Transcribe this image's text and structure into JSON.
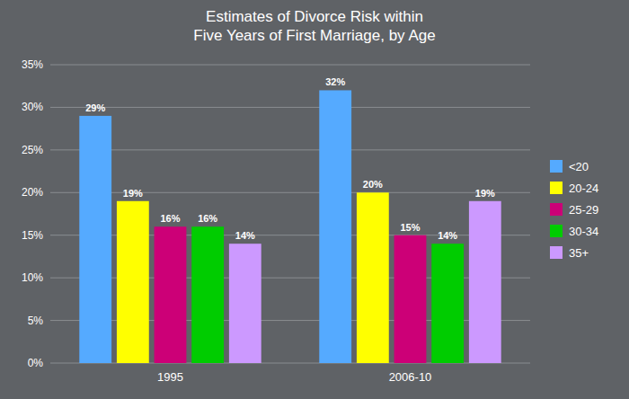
{
  "chart_data": {
    "type": "bar",
    "title": "Estimates of Divorce Risk within\nFive Years of First Marriage, by Age",
    "categories": [
      "1995",
      "2006-10"
    ],
    "series": [
      {
        "name": "<20",
        "color": "#55aaff",
        "values": [
          29,
          32
        ],
        "value_labels": [
          "29%",
          "32%"
        ]
      },
      {
        "name": "20-24",
        "color": "#ffff00",
        "values": [
          19,
          20
        ],
        "value_labels": [
          "19%",
          "20%"
        ]
      },
      {
        "name": "25-29",
        "color": "#cc0077",
        "values": [
          16,
          15
        ],
        "value_labels": [
          "16%",
          "15%"
        ]
      },
      {
        "name": "30-34",
        "color": "#00cc00",
        "values": [
          16,
          14
        ],
        "value_labels": [
          "16%",
          "14%"
        ]
      },
      {
        "name": "35+",
        "color": "#cc99ff",
        "values": [
          14,
          19
        ],
        "value_labels": [
          "14%",
          "19%"
        ]
      }
    ],
    "ylim": [
      0,
      35
    ],
    "yticks": [
      {
        "value": 0,
        "label": "0%"
      },
      {
        "value": 5,
        "label": "5%"
      },
      {
        "value": 10,
        "label": "10%"
      },
      {
        "value": 15,
        "label": "15%"
      },
      {
        "value": 20,
        "label": "20%"
      },
      {
        "value": 25,
        "label": "25%"
      },
      {
        "value": 30,
        "label": "30%"
      },
      {
        "value": 35,
        "label": "35%"
      }
    ],
    "grid": true,
    "legend": "right",
    "data_labels": true
  }
}
